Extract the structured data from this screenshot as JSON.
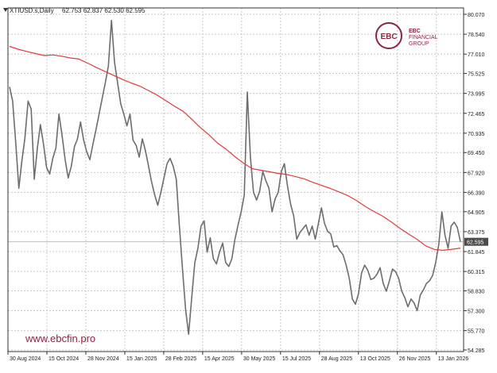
{
  "header": {
    "symbol_label": "XTIUSD.s,Daily",
    "ohlc_values": "62.753 62.837 62.530 62.595"
  },
  "branding": {
    "logo_letters": "EBC",
    "logo_text_line1": "EBC",
    "logo_text_line2": "FINANCIAL",
    "logo_text_line3": "GROUP",
    "website": "www.ebcfin.pro"
  },
  "colors": {
    "price_line": "#6d6d6d",
    "moving_average": "#e23a3a",
    "grid": "#c8c8c8",
    "current_price_tag_bg": "#4a4a4a",
    "current_price_tag_text": "#ffffff",
    "brand": "#8b2640",
    "axis_text": "#222222"
  },
  "chart_data": {
    "type": "line",
    "title": "XTIUSD.s,Daily",
    "x_labels": [
      "30 Aug 2024",
      "15 Oct 2024",
      "28 Nov 2024",
      "15 Jan 2025",
      "28 Feb 2025",
      "15 Apr 2025",
      "30 May 2025",
      "15 Jul 2025",
      "28 Aug 2025",
      "13 Oct 2025",
      "26 Nov 2025",
      "13 Jan 2026"
    ],
    "y_tick_labels": [
      "80.070",
      "78.540",
      "77.010",
      "75.525",
      "73.995",
      "72.465",
      "70.935",
      "69.450",
      "67.920",
      "66.390",
      "64.905",
      "63.375",
      "61.845",
      "60.315",
      "58.830",
      "57.300",
      "55.770",
      "54.285"
    ],
    "ylim": [
      54.285,
      80.07
    ],
    "current_price": "62.595",
    "grid": true,
    "series": [
      {
        "kind": "price",
        "values": [
          74.5,
          73.4,
          70.2,
          66.7,
          68.8,
          70.6,
          73.4,
          72.8,
          67.4,
          69.8,
          71.6,
          70.1,
          68.3,
          67.8,
          69.0,
          69.8,
          72.4,
          70.8,
          68.9,
          67.5,
          68.4,
          69.9,
          70.5,
          71.8,
          70.4,
          69.5,
          68.9,
          70.1,
          71.2,
          72.4,
          73.6,
          74.8,
          76.1,
          79.6,
          76.4,
          74.8,
          73.2,
          72.4,
          71.5,
          72.4,
          70.4,
          70.0,
          69.1,
          70.5,
          69.6,
          68.4,
          67.2,
          66.2,
          65.4,
          66.4,
          67.5,
          68.6,
          69.0,
          68.4,
          67.4,
          63.8,
          60.5,
          57.4,
          55.5,
          58.3,
          61.0,
          62.1,
          63.8,
          64.2,
          61.8,
          62.9,
          61.3,
          60.9,
          61.8,
          62.5,
          61.0,
          60.7,
          61.3,
          62.8,
          63.9,
          64.9,
          66.2,
          74.1,
          69.1,
          66.4,
          65.8,
          66.5,
          68.0,
          67.3,
          66.7,
          64.9,
          65.9,
          66.4,
          68.0,
          68.6,
          66.9,
          65.5,
          64.6,
          62.8,
          63.3,
          63.6,
          63.9,
          63.1,
          63.8,
          62.8,
          64.0,
          65.2,
          64.0,
          63.4,
          63.2,
          62.2,
          62.3,
          61.9,
          61.6,
          60.8,
          59.8,
          58.2,
          57.8,
          58.6,
          60.2,
          60.8,
          60.4,
          59.7,
          59.8,
          60.1,
          60.6,
          59.4,
          58.8,
          59.6,
          60.5,
          60.3,
          59.8,
          58.8,
          58.3,
          57.6,
          58.2,
          57.9,
          57.3,
          58.5,
          58.9,
          59.4,
          59.6,
          60.0,
          61.0,
          62.4,
          64.9,
          63.1,
          62.1,
          63.8,
          64.1,
          63.7,
          62.595
        ]
      },
      {
        "kind": "moving_average",
        "values": [
          77.6,
          77.39,
          77.21,
          77.05,
          76.9,
          76.95,
          76.85,
          76.72,
          76.63,
          76.32,
          75.99,
          75.69,
          75.38,
          75.08,
          74.8,
          74.56,
          74.22,
          73.87,
          73.45,
          73.02,
          72.63,
          72.02,
          71.37,
          70.81,
          70.17,
          69.7,
          69.13,
          68.63,
          68.21,
          68.09,
          67.97,
          67.85,
          67.76,
          67.6,
          67.43,
          67.16,
          66.92,
          66.69,
          66.43,
          66.15,
          65.77,
          65.32,
          64.93,
          64.58,
          64.13,
          63.64,
          63.2,
          62.78,
          62.28,
          62.01,
          61.94,
          62.02,
          62.11
        ]
      }
    ]
  }
}
